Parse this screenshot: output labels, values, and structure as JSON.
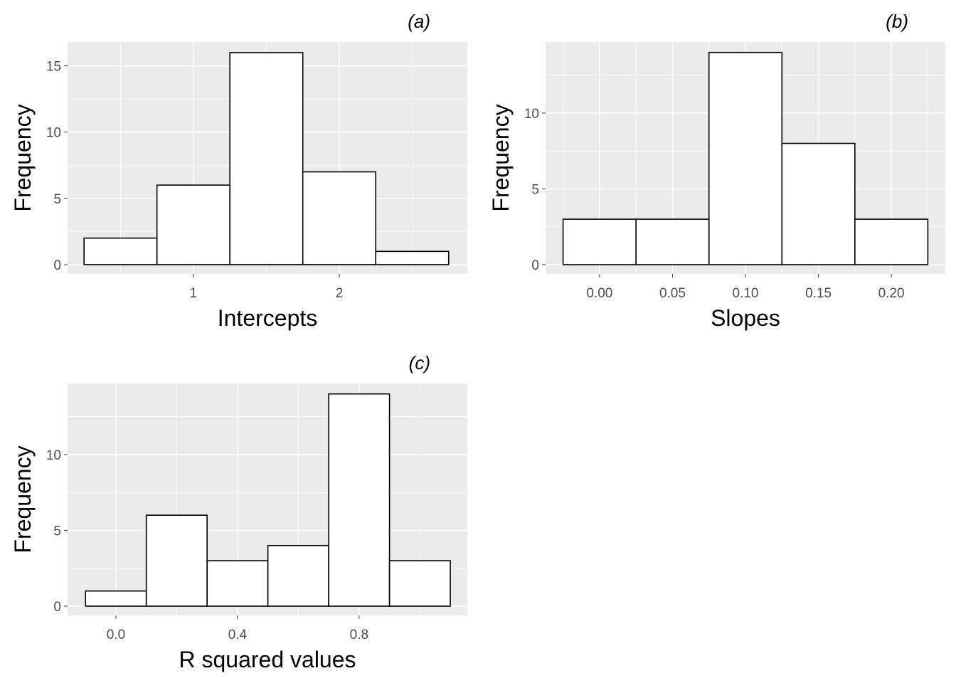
{
  "chart_data": [
    {
      "type": "bar",
      "panel_label": "(a)",
      "xlabel": "Intercepts",
      "ylabel": "Frequency",
      "bin_edges": [
        0.25,
        0.75,
        1.25,
        1.75,
        2.25,
        2.75
      ],
      "values": [
        2,
        6,
        16,
        7,
        1
      ],
      "xticks": [
        {
          "v": 1,
          "label": "1"
        },
        {
          "v": 2,
          "label": "2"
        }
      ],
      "xminor": [
        0.5,
        1.5,
        2.5
      ],
      "yticks": [
        {
          "v": 0,
          "label": "0"
        },
        {
          "v": 5,
          "label": "5"
        },
        {
          "v": 10,
          "label": "10"
        },
        {
          "v": 15,
          "label": "15"
        }
      ],
      "yminor": [
        2.5,
        7.5,
        12.5
      ],
      "xlim": [
        0.137,
        2.878
      ],
      "ylim": [
        -0.7,
        16.8
      ],
      "grid": true,
      "colors": {
        "panel": "#EBEBEB",
        "bar_fill": "#FFFFFF",
        "bar_edge": "#000000"
      }
    },
    {
      "type": "bar",
      "panel_label": "(b)",
      "xlabel": "Slopes",
      "ylabel": "Frequency",
      "bin_edges": [
        -0.025,
        0.025,
        0.075,
        0.125,
        0.175,
        0.225
      ],
      "values": [
        3,
        3,
        14,
        8,
        3
      ],
      "xticks": [
        {
          "v": 0,
          "label": "0.00"
        },
        {
          "v": 0.05,
          "label": "0.05"
        },
        {
          "v": 0.1,
          "label": "0.10"
        },
        {
          "v": 0.15,
          "label": "0.15"
        },
        {
          "v": 0.2,
          "label": "0.20"
        }
      ],
      "xminor": [
        -0.025,
        0.025,
        0.075,
        0.125,
        0.175,
        0.225
      ],
      "yticks": [
        {
          "v": 0,
          "label": "0"
        },
        {
          "v": 5,
          "label": "5"
        },
        {
          "v": 10,
          "label": "10"
        }
      ],
      "yminor": [
        2.5,
        7.5,
        12.5
      ],
      "xlim": [
        -0.037,
        0.237
      ],
      "ylim": [
        -0.61,
        14.69
      ],
      "grid": true,
      "colors": {
        "panel": "#EBEBEB",
        "bar_fill": "#FFFFFF",
        "bar_edge": "#000000"
      }
    },
    {
      "type": "bar",
      "panel_label": "(c)",
      "xlabel": "R squared values",
      "ylabel": "Frequency",
      "bin_edges": [
        -0.1,
        0.1,
        0.3,
        0.5,
        0.7,
        0.9,
        1.1
      ],
      "values": [
        1,
        6,
        3,
        4,
        14,
        3
      ],
      "xticks": [
        {
          "v": 0,
          "label": "0.0"
        },
        {
          "v": 0.4,
          "label": "0.4"
        },
        {
          "v": 0.8,
          "label": "0.8"
        }
      ],
      "xminor": [
        0.2,
        0.6,
        1.0
      ],
      "yticks": [
        {
          "v": 0,
          "label": "0"
        },
        {
          "v": 5,
          "label": "5"
        },
        {
          "v": 10,
          "label": "10"
        }
      ],
      "yminor": [
        2.5,
        7.5,
        12.5
      ],
      "xlim": [
        -0.159,
        1.156
      ],
      "ylim": [
        -0.61,
        14.69
      ],
      "grid": true,
      "colors": {
        "panel": "#EBEBEB",
        "bar_fill": "#FFFFFF",
        "bar_edge": "#000000"
      }
    }
  ]
}
